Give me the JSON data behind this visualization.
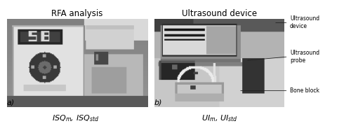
{
  "title_left": "RFA analysis",
  "title_right": "Ultrasound device",
  "label_left": "a)",
  "label_right": "b)",
  "caption_left": "$ISQ_m$, $ISQ_{std}$",
  "caption_right": "$UI_m$, $UI_{std}$",
  "annotations_right": [
    "Ultrasound\ndevice",
    "Ultrasound\nprobe",
    "Bone block"
  ],
  "bg_color": "#ffffff",
  "text_color": "#000000",
  "fig_width": 5.0,
  "fig_height": 1.8,
  "dpi": 100
}
